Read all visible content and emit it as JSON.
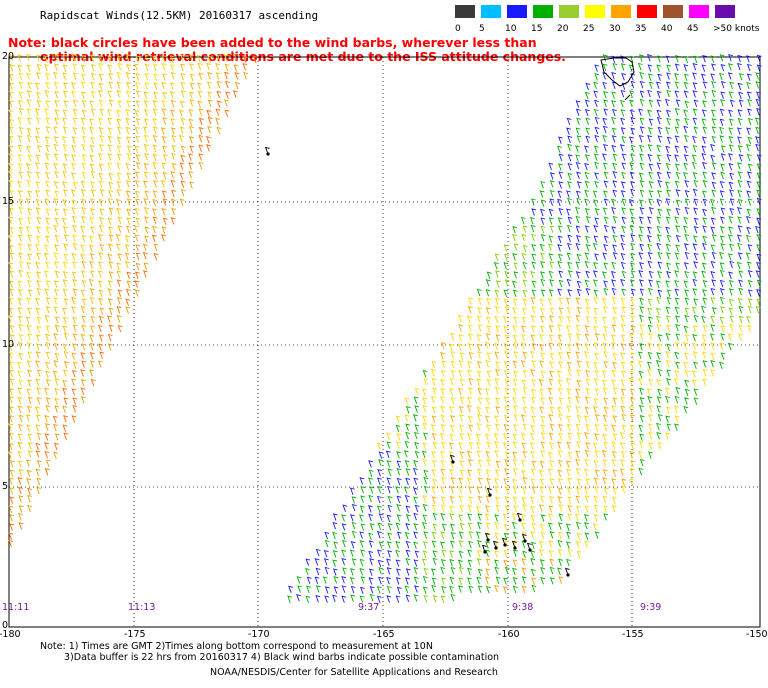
{
  "header": {
    "title": "Rapidscat Winds(12.5KM) 20160317 ascending",
    "note_line1": "Note: black circles have been added to the wind barbs, wherever less than",
    "note_line2": "optimal wind retrieval conditions are met due to the ISS attitude changes."
  },
  "legend": {
    "labels": [
      "0",
      "5",
      "10",
      "15",
      "20",
      "25",
      "30",
      "35",
      "40",
      "45",
      ">50 knots"
    ],
    "colors": [
      "#3a3a3a",
      "#00bfff",
      "#1a1aff",
      "#00b000",
      "#9acd32",
      "#ffff00",
      "#ffa500",
      "#ff0000",
      "#a0522d",
      "#ff00ff",
      "#6a0dad"
    ]
  },
  "axes": {
    "y_labels": [
      "20",
      "15",
      "10",
      "5",
      "0"
    ],
    "x_labels": [
      "-180",
      "-175",
      "-170",
      "-165",
      "-160",
      "-155",
      "-150"
    ]
  },
  "time_labels": [
    "11:11",
    "11:13",
    "9:37",
    "9:38",
    "9:39"
  ],
  "footer": {
    "line1": "Note: 1) Times are GMT 2)Times along bottom correspond to measurement at 10N",
    "line2": "3)Data buffer is 22 hrs from 20160317 4) Black wind barbs indicate possible contamination",
    "line3": "NOAA/NESDIS/Center for Satellite Applications and Research"
  }
}
